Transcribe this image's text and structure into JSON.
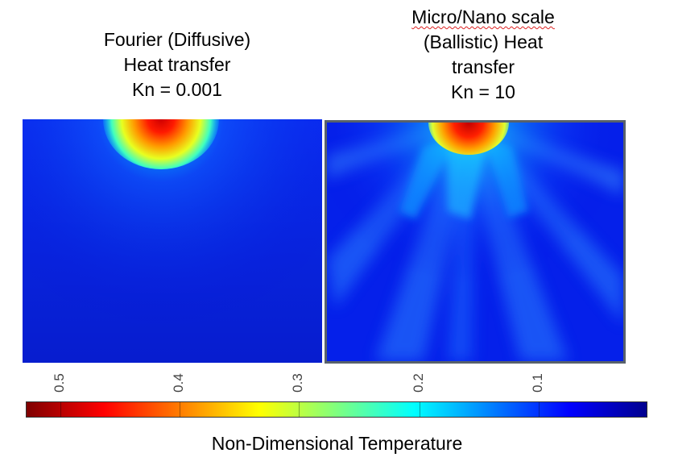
{
  "left_panel": {
    "title_lines": [
      "Fourier (Diffusive)",
      "Heat transfer",
      "Kn = 0.001"
    ]
  },
  "right_panel": {
    "title_lines": [
      "Micro/Nano scale",
      "(Ballistic) Heat",
      "transfer",
      "Kn = 10"
    ]
  },
  "colorbar": {
    "label": "Non-Dimensional Temperature",
    "ticks": [
      "0.5",
      "0.4",
      "0.3",
      "0.2",
      "0.1"
    ],
    "colormap": [
      "#7f0000",
      "#ff0000",
      "#ff7f00",
      "#ffff00",
      "#7fff7f",
      "#00ffff",
      "#007fff",
      "#0000ff",
      "#00008f"
    ]
  }
}
